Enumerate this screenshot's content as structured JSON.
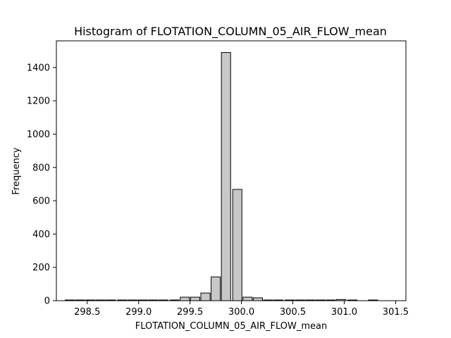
{
  "chart_data": {
    "type": "bar",
    "title": "Histogram of FLOTATION_COLUMN_05_AIR_FLOW_mean",
    "xlabel": "FLOTATION_COLUMN_05_AIR_FLOW_mean",
    "ylabel": "Frequency",
    "xlim": [
      298.2,
      301.6
    ],
    "ylim": [
      0,
      1560
    ],
    "xticks": [
      "298.5",
      "299.0",
      "299.5",
      "300.0",
      "300.5",
      "301.0",
      "301.5"
    ],
    "yticks": [
      "0",
      "200",
      "400",
      "600",
      "800",
      "1000",
      "1200",
      "1400"
    ],
    "grid": false,
    "bin_width": 0.1017,
    "bar_fill": "#c8c8c8",
    "bar_edge": "#000000",
    "bins": [
      {
        "x": 298.33,
        "count": 1
      },
      {
        "x": 298.43,
        "count": 1
      },
      {
        "x": 298.53,
        "count": 1
      },
      {
        "x": 298.63,
        "count": 1
      },
      {
        "x": 298.73,
        "count": 1
      },
      {
        "x": 298.84,
        "count": 1
      },
      {
        "x": 298.94,
        "count": 1
      },
      {
        "x": 299.04,
        "count": 1
      },
      {
        "x": 299.14,
        "count": 1
      },
      {
        "x": 299.24,
        "count": 1
      },
      {
        "x": 299.35,
        "count": 1
      },
      {
        "x": 299.45,
        "count": 21
      },
      {
        "x": 299.55,
        "count": 21
      },
      {
        "x": 299.65,
        "count": 46
      },
      {
        "x": 299.75,
        "count": 143
      },
      {
        "x": 299.85,
        "count": 1490
      },
      {
        "x": 299.96,
        "count": 668
      },
      {
        "x": 300.06,
        "count": 21
      },
      {
        "x": 300.16,
        "count": 17
      },
      {
        "x": 300.26,
        "count": 2
      },
      {
        "x": 300.36,
        "count": 1
      },
      {
        "x": 300.47,
        "count": 1
      },
      {
        "x": 300.57,
        "count": 1
      },
      {
        "x": 300.67,
        "count": 1
      },
      {
        "x": 300.77,
        "count": 1
      },
      {
        "x": 300.87,
        "count": 1
      },
      {
        "x": 300.97,
        "count": 7
      },
      {
        "x": 301.08,
        "count": 2
      },
      {
        "x": 301.18,
        "count": 0
      },
      {
        "x": 301.28,
        "count": 1
      }
    ]
  }
}
